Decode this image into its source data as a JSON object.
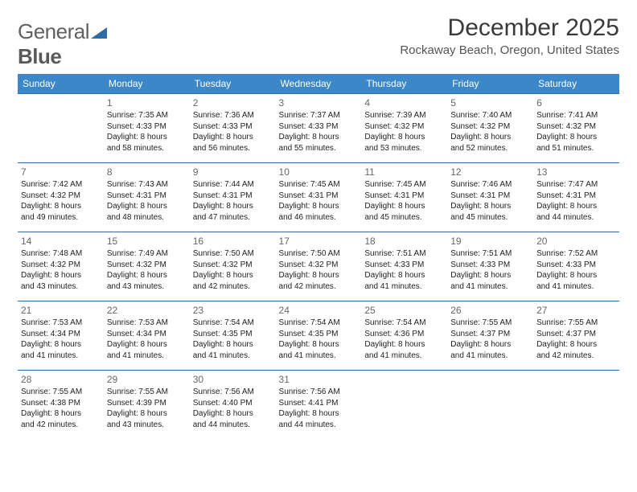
{
  "brand": {
    "part1": "General",
    "part2": "Blue"
  },
  "title": "December 2025",
  "location": "Rockaway Beach, Oregon, United States",
  "colors": {
    "header_bg": "#3b87c8",
    "header_text": "#ffffff",
    "row_border": "#2e6ca8",
    "logo_text": "#616161",
    "logo_mark": "#2e6ca8"
  },
  "day_headers": [
    "Sunday",
    "Monday",
    "Tuesday",
    "Wednesday",
    "Thursday",
    "Friday",
    "Saturday"
  ],
  "weeks": [
    [
      null,
      {
        "n": "1",
        "sr": "Sunrise: 7:35 AM",
        "ss": "Sunset: 4:33 PM",
        "d1": "Daylight: 8 hours",
        "d2": "and 58 minutes."
      },
      {
        "n": "2",
        "sr": "Sunrise: 7:36 AM",
        "ss": "Sunset: 4:33 PM",
        "d1": "Daylight: 8 hours",
        "d2": "and 56 minutes."
      },
      {
        "n": "3",
        "sr": "Sunrise: 7:37 AM",
        "ss": "Sunset: 4:33 PM",
        "d1": "Daylight: 8 hours",
        "d2": "and 55 minutes."
      },
      {
        "n": "4",
        "sr": "Sunrise: 7:39 AM",
        "ss": "Sunset: 4:32 PM",
        "d1": "Daylight: 8 hours",
        "d2": "and 53 minutes."
      },
      {
        "n": "5",
        "sr": "Sunrise: 7:40 AM",
        "ss": "Sunset: 4:32 PM",
        "d1": "Daylight: 8 hours",
        "d2": "and 52 minutes."
      },
      {
        "n": "6",
        "sr": "Sunrise: 7:41 AM",
        "ss": "Sunset: 4:32 PM",
        "d1": "Daylight: 8 hours",
        "d2": "and 51 minutes."
      }
    ],
    [
      {
        "n": "7",
        "sr": "Sunrise: 7:42 AM",
        "ss": "Sunset: 4:32 PM",
        "d1": "Daylight: 8 hours",
        "d2": "and 49 minutes."
      },
      {
        "n": "8",
        "sr": "Sunrise: 7:43 AM",
        "ss": "Sunset: 4:31 PM",
        "d1": "Daylight: 8 hours",
        "d2": "and 48 minutes."
      },
      {
        "n": "9",
        "sr": "Sunrise: 7:44 AM",
        "ss": "Sunset: 4:31 PM",
        "d1": "Daylight: 8 hours",
        "d2": "and 47 minutes."
      },
      {
        "n": "10",
        "sr": "Sunrise: 7:45 AM",
        "ss": "Sunset: 4:31 PM",
        "d1": "Daylight: 8 hours",
        "d2": "and 46 minutes."
      },
      {
        "n": "11",
        "sr": "Sunrise: 7:45 AM",
        "ss": "Sunset: 4:31 PM",
        "d1": "Daylight: 8 hours",
        "d2": "and 45 minutes."
      },
      {
        "n": "12",
        "sr": "Sunrise: 7:46 AM",
        "ss": "Sunset: 4:31 PM",
        "d1": "Daylight: 8 hours",
        "d2": "and 45 minutes."
      },
      {
        "n": "13",
        "sr": "Sunrise: 7:47 AM",
        "ss": "Sunset: 4:31 PM",
        "d1": "Daylight: 8 hours",
        "d2": "and 44 minutes."
      }
    ],
    [
      {
        "n": "14",
        "sr": "Sunrise: 7:48 AM",
        "ss": "Sunset: 4:32 PM",
        "d1": "Daylight: 8 hours",
        "d2": "and 43 minutes."
      },
      {
        "n": "15",
        "sr": "Sunrise: 7:49 AM",
        "ss": "Sunset: 4:32 PM",
        "d1": "Daylight: 8 hours",
        "d2": "and 43 minutes."
      },
      {
        "n": "16",
        "sr": "Sunrise: 7:50 AM",
        "ss": "Sunset: 4:32 PM",
        "d1": "Daylight: 8 hours",
        "d2": "and 42 minutes."
      },
      {
        "n": "17",
        "sr": "Sunrise: 7:50 AM",
        "ss": "Sunset: 4:32 PM",
        "d1": "Daylight: 8 hours",
        "d2": "and 42 minutes."
      },
      {
        "n": "18",
        "sr": "Sunrise: 7:51 AM",
        "ss": "Sunset: 4:33 PM",
        "d1": "Daylight: 8 hours",
        "d2": "and 41 minutes."
      },
      {
        "n": "19",
        "sr": "Sunrise: 7:51 AM",
        "ss": "Sunset: 4:33 PM",
        "d1": "Daylight: 8 hours",
        "d2": "and 41 minutes."
      },
      {
        "n": "20",
        "sr": "Sunrise: 7:52 AM",
        "ss": "Sunset: 4:33 PM",
        "d1": "Daylight: 8 hours",
        "d2": "and 41 minutes."
      }
    ],
    [
      {
        "n": "21",
        "sr": "Sunrise: 7:53 AM",
        "ss": "Sunset: 4:34 PM",
        "d1": "Daylight: 8 hours",
        "d2": "and 41 minutes."
      },
      {
        "n": "22",
        "sr": "Sunrise: 7:53 AM",
        "ss": "Sunset: 4:34 PM",
        "d1": "Daylight: 8 hours",
        "d2": "and 41 minutes."
      },
      {
        "n": "23",
        "sr": "Sunrise: 7:54 AM",
        "ss": "Sunset: 4:35 PM",
        "d1": "Daylight: 8 hours",
        "d2": "and 41 minutes."
      },
      {
        "n": "24",
        "sr": "Sunrise: 7:54 AM",
        "ss": "Sunset: 4:35 PM",
        "d1": "Daylight: 8 hours",
        "d2": "and 41 minutes."
      },
      {
        "n": "25",
        "sr": "Sunrise: 7:54 AM",
        "ss": "Sunset: 4:36 PM",
        "d1": "Daylight: 8 hours",
        "d2": "and 41 minutes."
      },
      {
        "n": "26",
        "sr": "Sunrise: 7:55 AM",
        "ss": "Sunset: 4:37 PM",
        "d1": "Daylight: 8 hours",
        "d2": "and 41 minutes."
      },
      {
        "n": "27",
        "sr": "Sunrise: 7:55 AM",
        "ss": "Sunset: 4:37 PM",
        "d1": "Daylight: 8 hours",
        "d2": "and 42 minutes."
      }
    ],
    [
      {
        "n": "28",
        "sr": "Sunrise: 7:55 AM",
        "ss": "Sunset: 4:38 PM",
        "d1": "Daylight: 8 hours",
        "d2": "and 42 minutes."
      },
      {
        "n": "29",
        "sr": "Sunrise: 7:55 AM",
        "ss": "Sunset: 4:39 PM",
        "d1": "Daylight: 8 hours",
        "d2": "and 43 minutes."
      },
      {
        "n": "30",
        "sr": "Sunrise: 7:56 AM",
        "ss": "Sunset: 4:40 PM",
        "d1": "Daylight: 8 hours",
        "d2": "and 44 minutes."
      },
      {
        "n": "31",
        "sr": "Sunrise: 7:56 AM",
        "ss": "Sunset: 4:41 PM",
        "d1": "Daylight: 8 hours",
        "d2": "and 44 minutes."
      },
      null,
      null,
      null
    ]
  ]
}
